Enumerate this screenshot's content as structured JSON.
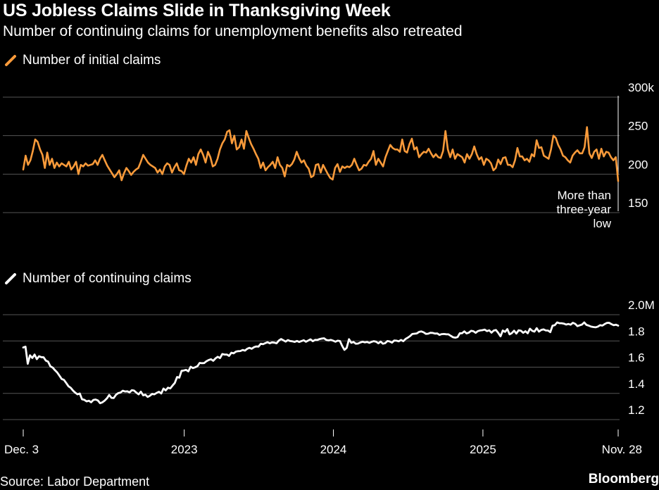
{
  "title": "US Jobless Claims Slide in Thanksgiving Week",
  "subtitle": "Number of continuing claims for unemployment benefits also retreated",
  "source": "Source: Labor Department",
  "brand": "Bloomberg",
  "colors": {
    "initial": "#f89a3a",
    "continuing": "#ffffff",
    "grid": "#555555",
    "background": "#000000"
  },
  "chart_data": [
    {
      "type": "line",
      "legend": "Number of initial claims",
      "unit": "thousands",
      "y_ticks": [
        "300k",
        "250",
        "200",
        "150"
      ],
      "y_tick_values": [
        300,
        250,
        200,
        150
      ],
      "ylim": [
        150,
        300
      ],
      "grid": true,
      "annotation": [
        "More than",
        "three-year",
        "low"
      ],
      "x_start": "Dec. 3, 2021",
      "x_end": "Nov. 28, 2025",
      "frequency": "weekly",
      "series": [
        {
          "name": "Number of initial claims",
          "values": [
            206,
            224,
            212,
            218,
            230,
            245,
            242,
            232,
            225,
            208,
            228,
            212,
            220,
            208,
            215,
            210,
            214,
            212,
            210,
            216,
            206,
            210,
            216,
            200,
            212,
            210,
            214,
            211,
            212,
            213,
            218,
            212,
            220,
            225,
            218,
            211,
            206,
            201,
            196,
            200,
            205,
            192,
            201,
            208,
            204,
            199,
            203,
            206,
            208,
            216,
            225,
            220,
            215,
            212,
            210,
            208,
            202,
            206,
            200,
            210,
            214,
            212,
            202,
            209,
            214,
            205,
            204,
            200,
            211,
            220,
            215,
            222,
            212,
            226,
            232,
            225,
            215,
            229,
            222,
            210,
            212,
            220,
            232,
            240,
            245,
            255,
            257,
            240,
            250,
            232,
            235,
            245,
            233,
            256,
            247,
            239,
            233,
            226,
            220,
            208,
            215,
            205,
            209,
            212,
            216,
            208,
            222,
            212,
            208,
            197,
            212,
            210,
            213,
            219,
            229,
            221,
            215,
            218,
            211,
            207,
            196,
            198,
            212,
            213,
            202,
            212,
            206,
            200,
            195,
            193,
            208,
            213,
            203,
            210,
            208,
            210,
            209,
            212,
            220,
            212,
            205,
            207,
            212,
            211,
            216,
            220,
            230,
            212,
            220,
            215,
            210,
            222,
            230,
            238,
            234,
            232,
            232,
            229,
            245,
            230,
            228,
            239,
            246,
            232,
            235,
            222,
            226,
            229,
            228,
            233,
            227,
            222,
            226,
            222,
            221,
            230,
            256,
            232,
            222,
            232,
            220,
            226,
            224,
            222,
            215,
            226,
            220,
            226,
            236,
            226,
            219,
            222,
            212,
            220,
            218,
            214,
            205,
            208,
            219,
            213,
            221,
            222,
            212,
            212,
            209,
            218,
            234,
            223,
            223,
            218,
            220,
            216,
            226,
            223,
            244,
            234,
            235,
            224,
            222,
            220,
            232,
            250,
            247,
            238,
            232,
            224,
            222,
            218,
            215,
            224,
            228,
            231,
            227,
            227,
            235,
            261,
            227,
            221,
            229,
            232,
            220,
            233,
            223,
            229,
            228,
            222,
            218,
            222,
            191
          ]
        }
      ]
    },
    {
      "type": "line",
      "legend": "Number of continuing claims",
      "unit": "millions",
      "y_ticks": [
        "2.0M",
        "1.8",
        "1.6",
        "1.4",
        "1.2"
      ],
      "y_tick_values": [
        2.0,
        1.8,
        1.6,
        1.4,
        1.2
      ],
      "ylim": [
        1.2,
        2.0
      ],
      "grid": true,
      "x_ticks": [
        "Dec. 3",
        "2023",
        "2024",
        "2025",
        "Nov. 28"
      ],
      "x_tick_dates": [
        "2021-12-03",
        "2023-01-01",
        "2024-01-01",
        "2025-01-01",
        "2025-11-28"
      ],
      "x_start": "Dec. 3, 2021",
      "x_end": "Nov. 28, 2025",
      "frequency": "weekly",
      "series": [
        {
          "name": "Number of continuing claims",
          "values": [
            1.75,
            1.756,
            1.626,
            1.69,
            1.67,
            1.696,
            1.661,
            1.683,
            1.676,
            1.675,
            1.65,
            1.642,
            1.606,
            1.597,
            1.577,
            1.56,
            1.535,
            1.51,
            1.503,
            1.48,
            1.454,
            1.442,
            1.421,
            1.405,
            1.393,
            1.399,
            1.355,
            1.351,
            1.339,
            1.344,
            1.332,
            1.35,
            1.353,
            1.346,
            1.325,
            1.332,
            1.345,
            1.362,
            1.388,
            1.366,
            1.365,
            1.389,
            1.402,
            1.406,
            1.42,
            1.414,
            1.416,
            1.408,
            1.424,
            1.421,
            1.406,
            1.393,
            1.413,
            1.385,
            1.39,
            1.373,
            1.382,
            1.396,
            1.393,
            1.404,
            1.412,
            1.399,
            1.437,
            1.423,
            1.443,
            1.438,
            1.46,
            1.48,
            1.525,
            1.52,
            1.572,
            1.575,
            1.579,
            1.568,
            1.603,
            1.593,
            1.599,
            1.607,
            1.632,
            1.63,
            1.631,
            1.645,
            1.655,
            1.66,
            1.649,
            1.667,
            1.679,
            1.669,
            1.7,
            1.696,
            1.696,
            1.686,
            1.71,
            1.705,
            1.718,
            1.722,
            1.723,
            1.731,
            1.726,
            1.74,
            1.747,
            1.74,
            1.752,
            1.758,
            1.757,
            1.778,
            1.775,
            1.783,
            1.79,
            1.782,
            1.789,
            1.787,
            1.782,
            1.803,
            1.814,
            1.805,
            1.795,
            1.806,
            1.799,
            1.797,
            1.793,
            1.8,
            1.792,
            1.799,
            1.805,
            1.794,
            1.803,
            1.812,
            1.798,
            1.808,
            1.807,
            1.814,
            1.818,
            1.82,
            1.807,
            1.804,
            1.808,
            1.802,
            1.794,
            1.802,
            1.799,
            1.762,
            1.732,
            1.747,
            1.813,
            1.786,
            1.792,
            1.779,
            1.78,
            1.788,
            1.794,
            1.789,
            1.792,
            1.785,
            1.793,
            1.798,
            1.794,
            1.782,
            1.795,
            1.779,
            1.783,
            1.799,
            1.796,
            1.787,
            1.803,
            1.802,
            1.797,
            1.807,
            1.798,
            1.815,
            1.825,
            1.837,
            1.853,
            1.855,
            1.857,
            1.869,
            1.872,
            1.866,
            1.854,
            1.855,
            1.862,
            1.861,
            1.856,
            1.857,
            1.846,
            1.852,
            1.853,
            1.851,
            1.85,
            1.839,
            1.828,
            1.825,
            1.829,
            1.858,
            1.859,
            1.873,
            1.857,
            1.863,
            1.877,
            1.874,
            1.862,
            1.875,
            1.88,
            1.882,
            1.886,
            1.875,
            1.881,
            1.863,
            1.879,
            1.883,
            1.861,
            1.835,
            1.879,
            1.869,
            1.89,
            1.85,
            1.86,
            1.878,
            1.856,
            1.881,
            1.878,
            1.862,
            1.874,
            1.858,
            1.893,
            1.877,
            1.871,
            1.897,
            1.871,
            1.884,
            1.888,
            1.88,
            1.879,
            1.867,
            1.916,
            1.92,
            1.941,
            1.935,
            1.935,
            1.932,
            1.925,
            1.929,
            1.924,
            1.938,
            1.93,
            1.913,
            1.919,
            1.925,
            1.941,
            1.922,
            1.917,
            1.909,
            1.906,
            1.904,
            1.909,
            1.92,
            1.917,
            1.928,
            1.937,
            1.938,
            1.928,
            1.92,
            1.924,
            1.917
          ]
        }
      ]
    }
  ]
}
